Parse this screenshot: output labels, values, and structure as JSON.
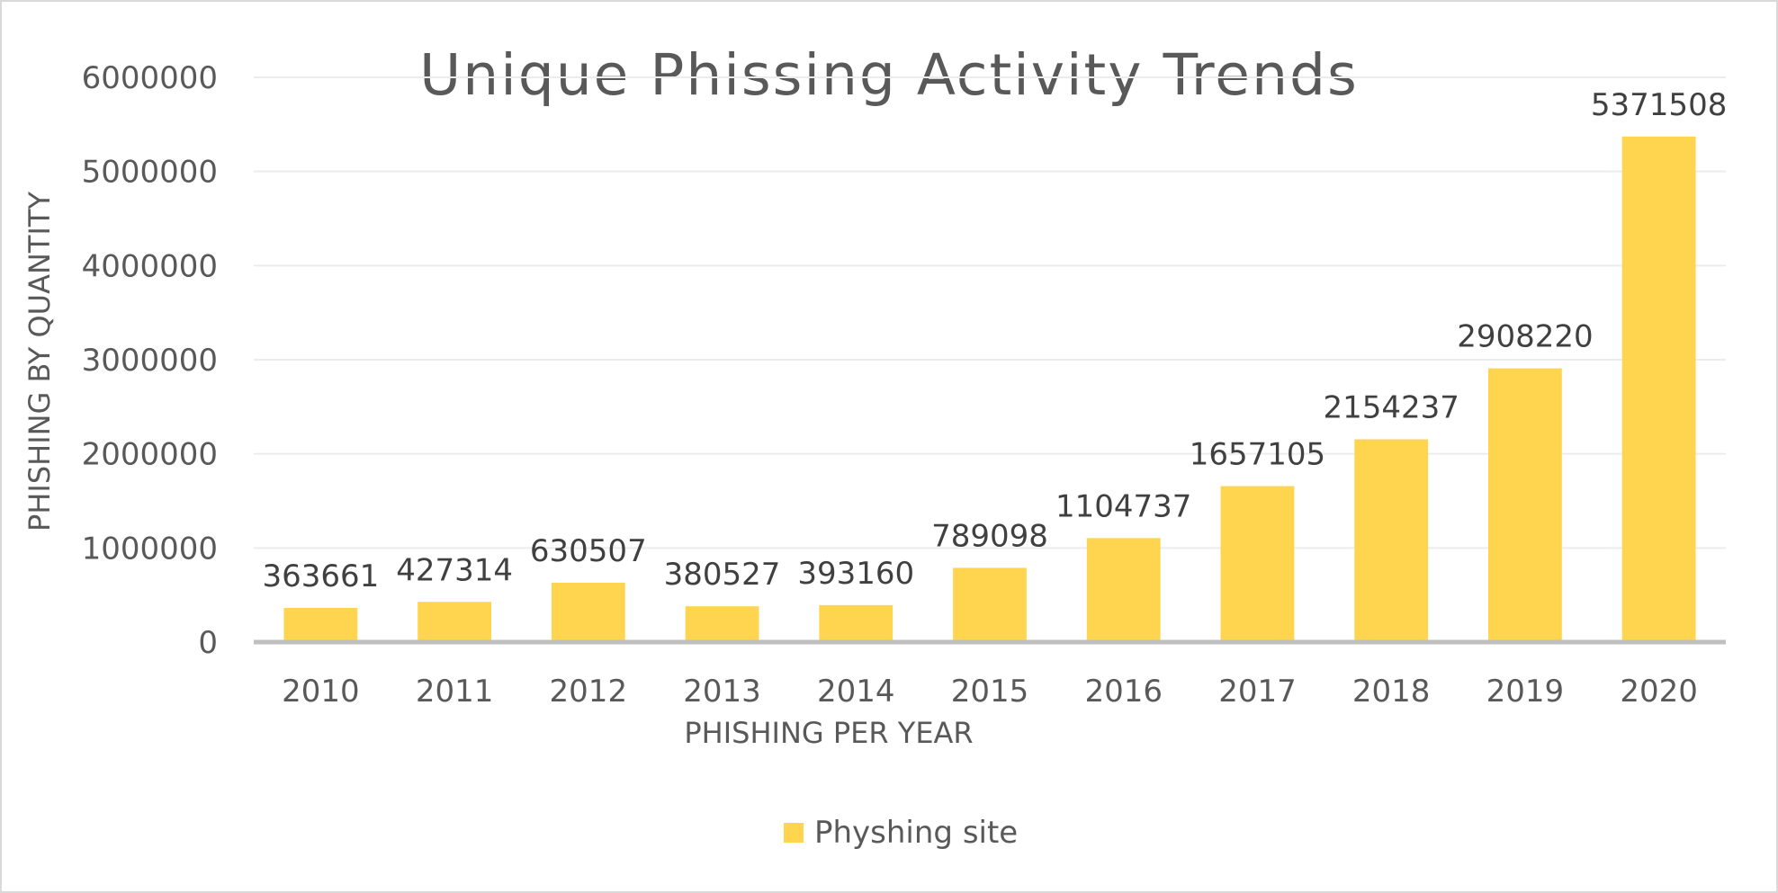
{
  "chart_data": {
    "type": "bar",
    "title": "Unique Phissing Activity Trends",
    "xlabel": "PHISHING PER YEAR",
    "ylabel": "PHISHING BY QUANTITY",
    "categories": [
      "2010",
      "2011",
      "2012",
      "2013",
      "2014",
      "2015",
      "2016",
      "2017",
      "2018",
      "2019",
      "2020"
    ],
    "series": [
      {
        "name": "Physhing site",
        "values": [
          363661,
          427314,
          630507,
          380527,
          393160,
          789098,
          1104737,
          1657105,
          2154237,
          2908220,
          5371508
        ],
        "color": "#ffd54f"
      }
    ],
    "data_labels": [
      "363661",
      "427314",
      "630507",
      "380527",
      "393160",
      "789098",
      "1104737",
      "1657105",
      "2154237",
      "2908220",
      "5371508"
    ],
    "ylim": [
      0,
      6000000
    ],
    "yticks": [
      0,
      1000000,
      2000000,
      3000000,
      4000000,
      5000000,
      6000000
    ],
    "ytick_labels": [
      "0",
      "1000000",
      "2000000",
      "3000000",
      "4000000",
      "5000000",
      "6000000"
    ],
    "grid": true,
    "legend_position": "bottom",
    "colors": {
      "bar": "#ffd54f",
      "grid": "#ececec",
      "axis": "#bfbfbf",
      "text": "#595959",
      "label": "#404040"
    }
  }
}
